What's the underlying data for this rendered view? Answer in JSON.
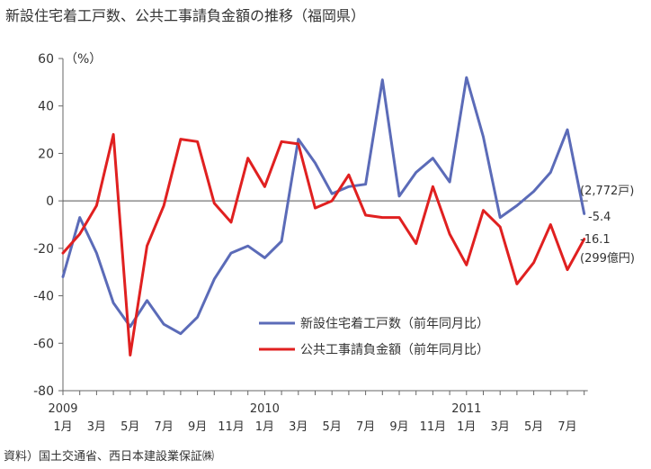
{
  "title": "新設住宅着工戸数、公共工事請負金額の推移（福岡県）",
  "source": "資料）国土交通省、西日本建設業保証㈱",
  "chart_data": {
    "type": "line",
    "title": "新設住宅着工戸数、公共工事請負金額の推移（福岡県）",
    "ylabel": "（%）",
    "ylim": [
      -80,
      60
    ],
    "yticks": [
      60,
      40,
      20,
      0,
      -20,
      -40,
      -60,
      -80
    ],
    "x_tick_labels": [
      "1月",
      "3月",
      "5月",
      "7月",
      "9月",
      "11月",
      "1月",
      "3月",
      "5月",
      "7月",
      "9月",
      "11月",
      "1月",
      "3月",
      "5月",
      "7月"
    ],
    "year_labels": [
      {
        "label": "2009",
        "month_index": 0
      },
      {
        "label": "2010",
        "month_index": 12
      },
      {
        "label": "2011",
        "month_index": 24
      }
    ],
    "grid": false,
    "legend_position": "lower-right",
    "series": [
      {
        "name": "新設住宅着工戸数（前年同月比）",
        "color": "#5b6bb8",
        "values": [
          -32,
          -7,
          -22,
          -43,
          -53,
          -42,
          -52,
          -56,
          -49,
          -33,
          -22,
          -19,
          -24,
          -17,
          26,
          16,
          3,
          6,
          7,
          51,
          2,
          12,
          18,
          8,
          52,
          27,
          -7,
          -2,
          4,
          12,
          30,
          -5.4
        ],
        "end_label": "-5.4",
        "unit_label": "(2,772戸)"
      },
      {
        "name": "公共工事請負金額（前年同月比）",
        "color": "#e02020",
        "values": [
          -22,
          -14,
          -2,
          28,
          -65,
          -19,
          -2,
          26,
          25,
          -1,
          -9,
          18,
          6,
          25,
          24,
          -3,
          0,
          11,
          -6,
          -7,
          -7,
          -18,
          6,
          -14,
          -27,
          -4,
          -11,
          -35,
          -26,
          -10,
          -29,
          -16.1
        ],
        "end_label": "-16.1",
        "unit_label": "(299億円)"
      }
    ]
  }
}
